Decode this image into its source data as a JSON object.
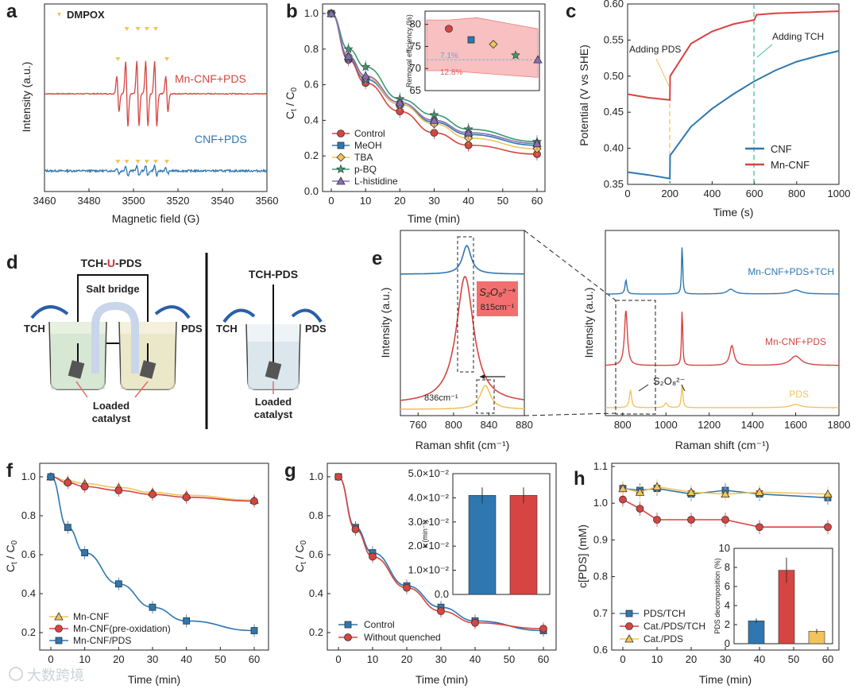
{
  "panels": {
    "a": {
      "label": "a",
      "marker_label": "DMPOX",
      "traces": [
        "Mn-CNF+PDS",
        "CNF+PDS"
      ],
      "xlabel": "Magnetic field (G)",
      "ylabel": "Intensity (a.u.)",
      "xticks": [
        "3460",
        "3480",
        "3500",
        "3520",
        "3540",
        "3560"
      ]
    },
    "b": {
      "label": "b",
      "xlabel": "Time (min)",
      "ylabel_main": "C",
      "ylabel_sub1": "t",
      "ylabel_mid": " / C",
      "ylabel_sub2": "0",
      "xticks": [
        "0",
        "10",
        "20",
        "30",
        "40",
        "50",
        "60"
      ],
      "yticks": [
        "0.0",
        "0.2",
        "0.4",
        "0.6",
        "0.8",
        "1.0"
      ],
      "legend": [
        "Control",
        "MeOH",
        "TBA",
        "p-BQ",
        "L-histidine"
      ],
      "inset": {
        "ylabel": "Removal efficiency (%)",
        "yticks": [
          "65",
          "70",
          "75",
          "80"
        ],
        "ann1": "7.1%",
        "ann2": "12.8%"
      }
    },
    "c": {
      "label": "c",
      "xlabel": "Time (s)",
      "ylabel": "Potential (V vs SHE)",
      "xticks": [
        "0",
        "200",
        "400",
        "600",
        "800",
        "1000"
      ],
      "yticks": [
        "0.35",
        "0.40",
        "0.45",
        "0.50",
        "0.55",
        "0.60"
      ],
      "ann_pds": "Adding PDS",
      "ann_tch": "Adding TCH",
      "legend": [
        "CNF",
        "Mn-CNF"
      ]
    },
    "d": {
      "label": "d",
      "title_left_a": "TCH-",
      "title_left_b": "U",
      "title_left_c": "-PDS",
      "salt_bridge": "Salt bridge",
      "tch": "TCH",
      "pds": "PDS",
      "title_right": "TCH-PDS",
      "loaded1": "Loaded",
      "loaded2": "catalyst"
    },
    "e": {
      "label": "e",
      "ylabel": "Intensity (a.u.)",
      "xlabel": "Raman shfit (cm⁻¹)",
      "xticks": [
        "760",
        "800",
        "840",
        "880"
      ],
      "box_species": "S₂O₈²⁻*",
      "box_wn": "815cm⁻¹",
      "peak836": "836cm⁻¹",
      "right": {
        "ylabel": "Intensity (a.u.)",
        "xlabel": "Raman shift (cm⁻¹)",
        "xticks": [
          "800",
          "1000",
          "1200",
          "1400",
          "1600",
          "1800"
        ],
        "traces": [
          "Mn-CNF+PDS+TCH",
          "Mn-CNF+PDS",
          "PDS"
        ],
        "s2o8": "S₂O₈²⁻"
      }
    },
    "f": {
      "label": "f",
      "xlabel": "Time (min)",
      "xticks": [
        "0",
        "10",
        "20",
        "30",
        "40",
        "50",
        "60"
      ],
      "yticks": [
        "0.2",
        "0.4",
        "0.6",
        "0.8",
        "1.0"
      ],
      "legend": [
        "Mn-CNF",
        "Mn-CNF(pre-oxidation)",
        "Mn-CNF/PDS"
      ]
    },
    "g": {
      "label": "g",
      "xlabel": "Time (min)",
      "xticks": [
        "0",
        "10",
        "20",
        "30",
        "40",
        "50",
        "60"
      ],
      "yticks": [
        "0.2",
        "0.4",
        "0.6",
        "0.8",
        "1.0"
      ],
      "legend": [
        "Control",
        "Without quenched"
      ],
      "inset": {
        "ylabel": "k (min⁻¹)",
        "yticks": [
          "0.0",
          "1.0×10⁻²",
          "2.0×10⁻²",
          "3.0×10⁻²",
          "4.0×10⁻²",
          "5.0×10⁻²"
        ]
      }
    },
    "h": {
      "label": "h",
      "xlabel": "Time (min)",
      "ylabel": "c[PDS] (mM)",
      "xticks": [
        "0",
        "10",
        "20",
        "30",
        "40",
        "50",
        "60"
      ],
      "yticks": [
        "0.6",
        "0.7",
        "0.8",
        "0.9",
        "1.0",
        "1.1"
      ],
      "legend": [
        "PDS/TCH",
        "Cat./PDS/TCH",
        "Cat./PDS"
      ],
      "inset": {
        "ylabel": "PDS decomposition (%)",
        "yticks": [
          "0",
          "2",
          "4",
          "6",
          "8",
          "10"
        ]
      }
    }
  },
  "watermark": "大数跨境",
  "colors": {
    "red": "#d64541",
    "blue": "#2e77b0",
    "yellow": "#f2c35c",
    "green": "#3a9a6e",
    "purple": "#8b6bb8",
    "teal": "#2aa79b"
  },
  "chart_data": [
    {
      "panel": "b",
      "type": "line",
      "x": [
        0,
        5,
        10,
        20,
        30,
        40,
        60
      ],
      "series": [
        {
          "name": "Control",
          "values": [
            1.0,
            0.74,
            0.61,
            0.45,
            0.33,
            0.26,
            0.21
          ]
        },
        {
          "name": "MeOH",
          "values": [
            1.0,
            0.75,
            0.63,
            0.49,
            0.39,
            0.32,
            0.26
          ]
        },
        {
          "name": "TBA",
          "values": [
            1.0,
            0.76,
            0.64,
            0.49,
            0.38,
            0.3,
            0.24
          ]
        },
        {
          "name": "p-BQ",
          "values": [
            1.0,
            0.8,
            0.7,
            0.52,
            0.43,
            0.35,
            0.28
          ]
        },
        {
          "name": "L-histidine",
          "values": [
            1.0,
            0.76,
            0.65,
            0.5,
            0.4,
            0.33,
            0.27
          ]
        }
      ],
      "ylim": [
        0,
        1.0
      ],
      "xlim": [
        0,
        60
      ]
    },
    {
      "panel": "b-inset",
      "type": "scatter",
      "values": [
        79,
        76.5,
        75.5,
        73,
        72
      ],
      "ylim": [
        65,
        83
      ]
    },
    {
      "panel": "c",
      "type": "line",
      "xlim": [
        0,
        1000
      ],
      "ylim": [
        0.35,
        0.6
      ],
      "series": [
        {
          "name": "CNF",
          "x": [
            0,
            100,
            200,
            201,
            300,
            400,
            500,
            600,
            700,
            800,
            900,
            1000
          ],
          "values": [
            0.367,
            0.363,
            0.358,
            0.39,
            0.43,
            0.455,
            0.475,
            0.493,
            0.508,
            0.52,
            0.528,
            0.535
          ]
        },
        {
          "name": "Mn-CNF",
          "x": [
            0,
            100,
            200,
            201,
            300,
            400,
            500,
            600,
            610,
            700,
            800,
            900,
            1000
          ],
          "values": [
            0.475,
            0.47,
            0.467,
            0.5,
            0.545,
            0.562,
            0.572,
            0.578,
            0.585,
            0.587,
            0.588,
            0.589,
            0.59
          ]
        }
      ]
    },
    {
      "panel": "f",
      "type": "line",
      "x": [
        0,
        5,
        10,
        20,
        30,
        40,
        60
      ],
      "ylim": [
        0.2,
        1.0
      ],
      "series": [
        {
          "name": "Mn-CNF",
          "values": [
            1.0,
            0.98,
            0.965,
            0.945,
            0.92,
            0.905,
            0.88
          ]
        },
        {
          "name": "Mn-CNF(pre-oxidation)",
          "values": [
            1.0,
            0.97,
            0.95,
            0.93,
            0.91,
            0.895,
            0.875
          ]
        },
        {
          "name": "Mn-CNF/PDS",
          "values": [
            1.0,
            0.74,
            0.61,
            0.45,
            0.33,
            0.26,
            0.21
          ]
        }
      ]
    },
    {
      "panel": "g",
      "type": "line",
      "x": [
        0,
        5,
        10,
        20,
        30,
        40,
        60
      ],
      "ylim": [
        0.2,
        1.0
      ],
      "series": [
        {
          "name": "Control",
          "values": [
            1.0,
            0.74,
            0.61,
            0.44,
            0.33,
            0.26,
            0.21
          ]
        },
        {
          "name": "Without quenched",
          "values": [
            1.0,
            0.73,
            0.59,
            0.43,
            0.31,
            0.25,
            0.22
          ]
        }
      ]
    },
    {
      "panel": "g-inset",
      "type": "bar",
      "values": [
        0.041,
        0.041
      ],
      "ylim": [
        0,
        0.05
      ]
    },
    {
      "panel": "h",
      "type": "line",
      "x": [
        0,
        5,
        10,
        20,
        30,
        40,
        60
      ],
      "ylim": [
        0.6,
        1.1
      ],
      "series": [
        {
          "name": "PDS/TCH",
          "values": [
            1.04,
            1.035,
            1.04,
            1.025,
            1.035,
            1.025,
            1.015
          ]
        },
        {
          "name": "Cat./PDS/TCH",
          "values": [
            1.01,
            0.985,
            0.955,
            0.955,
            0.955,
            0.935,
            0.935
          ]
        },
        {
          "name": "Cat./PDS",
          "values": [
            1.04,
            1.03,
            1.045,
            1.03,
            1.025,
            1.03,
            1.025
          ]
        }
      ]
    },
    {
      "panel": "h-inset",
      "type": "bar",
      "values": [
        2.4,
        7.7,
        1.3
      ],
      "ylim": [
        0,
        10
      ]
    }
  ]
}
